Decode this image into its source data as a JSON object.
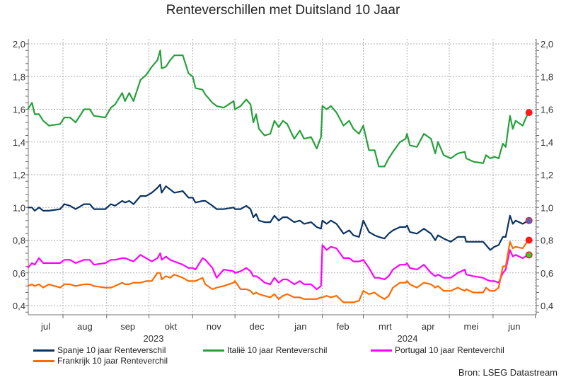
{
  "chart_data": {
    "type": "line",
    "title": "Renteverschillen met Duitsland 10 Jaar",
    "source": "Bron: LSEG Datastream",
    "ylim": [
      0.34,
      2.03
    ],
    "y_ticks": [
      "0,4",
      "0,6",
      "0,8",
      "1,0",
      "1,2",
      "1,4",
      "1,6",
      "1,8",
      "2,0"
    ],
    "x_tick_labels": [
      "jul",
      "aug",
      "sep",
      "okt",
      "nov",
      "dec",
      "jan",
      "feb",
      "mrt",
      "apr",
      "mei",
      "jun"
    ],
    "year_labels": [
      "2023",
      "2024"
    ],
    "grid": true,
    "legend_placement": "bottom",
    "x": [
      "2023-07-07",
      "2023-07-10",
      "2023-07-12",
      "2023-07-15",
      "2023-07-18",
      "2023-07-22",
      "2023-07-30",
      "2023-08-02",
      "2023-08-06",
      "2023-08-10",
      "2023-08-16",
      "2023-08-20",
      "2023-08-23",
      "2023-08-31",
      "2023-09-04",
      "2023-09-07",
      "2023-09-12",
      "2023-09-14",
      "2023-09-17",
      "2023-09-20",
      "2023-09-25",
      "2023-09-29",
      "2023-10-03",
      "2023-10-07",
      "2023-10-09",
      "2023-10-10",
      "2023-10-13",
      "2023-10-16",
      "2023-10-19",
      "2023-10-25",
      "2023-10-29",
      "2023-11-01",
      "2023-11-03",
      "2023-11-08",
      "2023-11-10",
      "2023-11-15",
      "2023-11-18",
      "2023-11-23",
      "2023-11-30",
      "2023-12-01",
      "2023-12-05",
      "2023-12-09",
      "2023-12-12",
      "2023-12-14",
      "2023-12-16",
      "2023-12-18",
      "2023-12-22",
      "2023-12-26",
      "2023-12-29",
      "2024-01-01",
      "2024-01-04",
      "2024-01-07",
      "2024-01-12",
      "2024-01-16",
      "2024-01-19",
      "2024-01-24",
      "2024-01-28",
      "2024-01-31",
      "2024-02-01",
      "2024-02-04",
      "2024-02-07",
      "2024-02-11",
      "2024-02-16",
      "2024-02-20",
      "2024-02-23",
      "2024-02-27",
      "2024-03-01",
      "2024-03-05",
      "2024-03-09",
      "2024-03-12",
      "2024-03-16",
      "2024-03-19",
      "2024-03-22",
      "2024-03-27",
      "2024-03-31",
      "2024-04-01",
      "2024-04-03",
      "2024-04-08",
      "2024-04-13",
      "2024-04-18",
      "2024-04-21",
      "2024-04-23",
      "2024-04-27",
      "2024-05-02",
      "2024-05-07",
      "2024-05-12",
      "2024-05-13",
      "2024-05-18",
      "2024-05-25",
      "2024-05-27",
      "2024-05-30",
      "2024-06-02",
      "2024-06-05",
      "2024-06-08",
      "2024-06-10",
      "2024-06-13",
      "2024-06-15",
      "2024-06-17",
      "2024-06-22",
      "2024-06-26"
    ],
    "series": [
      {
        "name": "Spanje 10 jaar Renteverschil",
        "color": "#0b3463",
        "end_marker": "#3b6fd8",
        "values": [
          1.0,
          1.0,
          0.98,
          1.0,
          0.98,
          0.98,
          0.99,
          1.02,
          1.01,
          0.99,
          1.02,
          1.02,
          0.99,
          0.99,
          1.02,
          1.01,
          1.04,
          1.03,
          1.04,
          1.02,
          1.07,
          1.07,
          1.09,
          1.12,
          1.14,
          1.09,
          1.13,
          1.11,
          1.09,
          1.1,
          1.06,
          1.06,
          1.03,
          1.04,
          1.04,
          1.01,
          0.99,
          0.99,
          1.0,
          0.99,
          0.99,
          1.01,
          0.99,
          0.94,
          0.96,
          0.92,
          0.91,
          0.91,
          0.95,
          0.92,
          0.94,
          0.94,
          0.91,
          0.92,
          0.9,
          0.91,
          0.88,
          0.87,
          0.92,
          0.9,
          0.92,
          0.9,
          0.84,
          0.86,
          0.83,
          0.82,
          0.92,
          0.85,
          0.83,
          0.82,
          0.81,
          0.84,
          0.86,
          0.88,
          0.88,
          0.89,
          0.85,
          0.84,
          0.87,
          0.84,
          0.8,
          0.83,
          0.81,
          0.79,
          0.82,
          0.82,
          0.79,
          0.79,
          0.79,
          0.77,
          0.74,
          0.76,
          0.77,
          0.82,
          0.82,
          0.95,
          0.9,
          0.92,
          0.9,
          0.92
        ]
      },
      {
        "name": "Italië 10 jaar Renteverschil",
        "color": "#27a03c",
        "end_marker": "#ff1a1a",
        "values": [
          1.6,
          1.64,
          1.57,
          1.57,
          1.53,
          1.5,
          1.51,
          1.55,
          1.55,
          1.52,
          1.6,
          1.6,
          1.56,
          1.55,
          1.61,
          1.63,
          1.7,
          1.65,
          1.7,
          1.65,
          1.78,
          1.81,
          1.86,
          1.9,
          1.96,
          1.85,
          1.86,
          1.9,
          1.93,
          1.93,
          1.82,
          1.8,
          1.73,
          1.72,
          1.69,
          1.64,
          1.62,
          1.61,
          1.65,
          1.6,
          1.62,
          1.66,
          1.63,
          1.52,
          1.57,
          1.48,
          1.44,
          1.45,
          1.53,
          1.49,
          1.53,
          1.51,
          1.42,
          1.47,
          1.42,
          1.43,
          1.36,
          1.43,
          1.62,
          1.6,
          1.62,
          1.58,
          1.5,
          1.53,
          1.48,
          1.45,
          1.5,
          1.35,
          1.35,
          1.25,
          1.25,
          1.3,
          1.34,
          1.4,
          1.42,
          1.45,
          1.38,
          1.37,
          1.45,
          1.42,
          1.33,
          1.4,
          1.32,
          1.3,
          1.33,
          1.34,
          1.3,
          1.28,
          1.27,
          1.32,
          1.3,
          1.31,
          1.3,
          1.39,
          1.37,
          1.56,
          1.48,
          1.53,
          1.5,
          1.58
        ]
      },
      {
        "name": "Portugal 10 jaar Renteverchil",
        "color": "#ff00ff",
        "end_marker": "#33cc33",
        "values": [
          0.63,
          0.66,
          0.65,
          0.69,
          0.66,
          0.66,
          0.66,
          0.68,
          0.68,
          0.66,
          0.68,
          0.68,
          0.65,
          0.66,
          0.68,
          0.68,
          0.69,
          0.69,
          0.68,
          0.67,
          0.71,
          0.69,
          0.67,
          0.69,
          0.72,
          0.68,
          0.7,
          0.68,
          0.67,
          0.65,
          0.63,
          0.63,
          0.62,
          0.69,
          0.68,
          0.63,
          0.57,
          0.62,
          0.61,
          0.6,
          0.61,
          0.63,
          0.61,
          0.58,
          0.58,
          0.57,
          0.54,
          0.53,
          0.57,
          0.54,
          0.56,
          0.56,
          0.53,
          0.55,
          0.53,
          0.53,
          0.5,
          0.52,
          0.77,
          0.74,
          0.76,
          0.75,
          0.69,
          0.69,
          0.67,
          0.67,
          0.68,
          0.63,
          0.57,
          0.57,
          0.56,
          0.58,
          0.62,
          0.65,
          0.65,
          0.66,
          0.63,
          0.62,
          0.65,
          0.6,
          0.58,
          0.59,
          0.57,
          0.57,
          0.6,
          0.62,
          0.59,
          0.58,
          0.57,
          0.56,
          0.55,
          0.55,
          0.54,
          0.6,
          0.62,
          0.74,
          0.7,
          0.71,
          0.69,
          0.71
        ]
      },
      {
        "name": "Frankrijk 10 jaar Renteverchil",
        "color": "#ff6a00",
        "end_marker": "#ff1a1a",
        "values": [
          0.52,
          0.53,
          0.52,
          0.53,
          0.51,
          0.53,
          0.51,
          0.53,
          0.53,
          0.52,
          0.53,
          0.53,
          0.52,
          0.51,
          0.51,
          0.52,
          0.54,
          0.53,
          0.53,
          0.54,
          0.54,
          0.55,
          0.55,
          0.6,
          0.6,
          0.56,
          0.58,
          0.57,
          0.59,
          0.57,
          0.55,
          0.55,
          0.55,
          0.57,
          0.53,
          0.5,
          0.51,
          0.52,
          0.54,
          0.55,
          0.5,
          0.5,
          0.49,
          0.47,
          0.48,
          0.47,
          0.46,
          0.45,
          0.47,
          0.44,
          0.46,
          0.47,
          0.45,
          0.45,
          0.44,
          0.44,
          0.44,
          0.45,
          0.45,
          0.46,
          0.45,
          0.46,
          0.42,
          0.42,
          0.42,
          0.43,
          0.49,
          0.47,
          0.48,
          0.46,
          0.44,
          0.46,
          0.51,
          0.54,
          0.54,
          0.55,
          0.53,
          0.51,
          0.54,
          0.53,
          0.51,
          0.52,
          0.49,
          0.49,
          0.51,
          0.49,
          0.5,
          0.48,
          0.48,
          0.51,
          0.49,
          0.49,
          0.51,
          0.64,
          0.64,
          0.79,
          0.75,
          0.76,
          0.75,
          0.8
        ]
      }
    ]
  }
}
